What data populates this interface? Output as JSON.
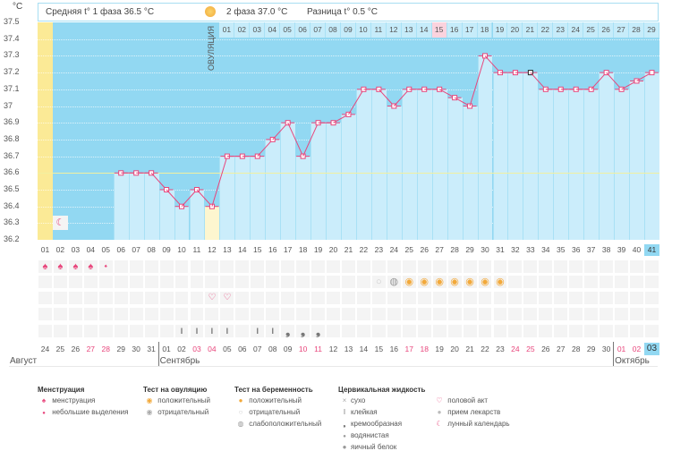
{
  "header": {
    "unit": "°C",
    "phase1": "Средняя t° 1 фаза 36.5 °C",
    "phase2": "2 фаза 37.0 °C",
    "diff": "Разница t° 0.5 °C"
  },
  "ovulation_label": "ОВУЛЯЦИЯ",
  "colors": {
    "plot_bg": "#92d8f2",
    "bar": "#cbedfb",
    "line": "#e8467c",
    "ovulation": "#fbea96",
    "highlight": "#fdb0c4",
    "coverline": "#f2f0a0"
  },
  "chart_data": {
    "type": "line",
    "ylabel": "°C",
    "ylim": [
      36.2,
      37.5
    ],
    "yticks": [
      "37.5",
      "37.4",
      "37.3",
      "37.2",
      "37.1",
      "37",
      "36.9",
      "36.8",
      "36.7",
      "36.6",
      "36.5",
      "36.4",
      "36.3",
      "36.2"
    ],
    "coverline": 36.6,
    "ovulation_day": 12,
    "highlight_phase2_day": 15,
    "cycle_days": [
      "01",
      "02",
      "03",
      "04",
      "05",
      "06",
      "07",
      "08",
      "09",
      "10",
      "11",
      "12",
      "13",
      "14",
      "15",
      "16",
      "17",
      "18",
      "19",
      "20",
      "21",
      "22",
      "23",
      "24",
      "25",
      "26",
      "27",
      "28",
      "29",
      "30",
      "31",
      "32",
      "33",
      "34",
      "35",
      "36",
      "37",
      "38",
      "39",
      "40",
      "41"
    ],
    "temps": [
      null,
      null,
      null,
      null,
      null,
      36.6,
      36.6,
      36.6,
      36.5,
      36.4,
      36.5,
      36.4,
      36.7,
      36.7,
      36.7,
      36.8,
      36.9,
      36.7,
      36.9,
      36.9,
      36.95,
      37.1,
      37.1,
      37.0,
      37.1,
      37.1,
      37.1,
      37.05,
      37.0,
      37.3,
      37.2,
      37.2,
      37.2,
      37.1,
      37.1,
      37.1,
      37.1,
      37.2,
      37.1,
      37.15,
      37.2
    ],
    "phase2_labels": [
      "01",
      "02",
      "03",
      "04",
      "05",
      "06",
      "07",
      "08",
      "09",
      "10",
      "11",
      "12",
      "13",
      "14",
      "15",
      "16",
      "17",
      "18",
      "19",
      "20",
      "21",
      "22",
      "23",
      "24",
      "25",
      "26",
      "27",
      "28",
      "29"
    ],
    "dates": [
      "24",
      "25",
      "26",
      "27",
      "28",
      "29",
      "30",
      "31",
      "01",
      "02",
      "03",
      "04",
      "05",
      "06",
      "07",
      "08",
      "09",
      "10",
      "11",
      "12",
      "13",
      "14",
      "15",
      "16",
      "17",
      "18",
      "19",
      "20",
      "21",
      "22",
      "23",
      "24",
      "25",
      "26",
      "27",
      "28",
      "29",
      "30",
      "01",
      "02",
      "03"
    ],
    "weekend": [
      4,
      5,
      11,
      12,
      18,
      19,
      25,
      26,
      32,
      33,
      39,
      40
    ],
    "today_index": 41,
    "months": [
      {
        "label": "Август",
        "start": 1
      },
      {
        "label": "Сентябрь",
        "start": 9
      },
      {
        "label": "Октябрь",
        "start": 39
      }
    ],
    "moon_day": 2,
    "menstruation": {
      "1": "heavy",
      "2": "heavy",
      "3": "heavy",
      "4": "heavy",
      "5": "light"
    },
    "pregnancy_tests": {
      "23": "negative",
      "24": "weak",
      "25": "positive",
      "26": "positive",
      "27": "positive",
      "28": "positive",
      "29": "positive",
      "30": "positive",
      "31": "positive"
    },
    "intercourse": [
      12,
      13
    ],
    "cervical": {
      "10": "sticky",
      "11": "sticky",
      "12": "sticky",
      "13": "sticky",
      "15": "sticky",
      "16": "sticky",
      "17": "creamy",
      "18": "creamy",
      "19": "creamy"
    }
  },
  "legend": {
    "menstruation": {
      "title": "Менструация",
      "items": [
        "менструация",
        "небольшие выделения"
      ]
    },
    "ovulation_test": {
      "title": "Тест на овуляцию",
      "items": [
        "положительный",
        "отрицательный"
      ]
    },
    "pregnancy_test": {
      "title": "Тест на беременность",
      "items": [
        "положительный",
        "отрицательный",
        "слабоположительный"
      ]
    },
    "cervical": {
      "title": "Цервикальная жидкость",
      "items": [
        "сухо",
        "клейкая",
        "кремообразная",
        "водянистая",
        "яичный белок"
      ]
    },
    "other": {
      "items": [
        "половой акт",
        "прием лекарств",
        "лунный календарь"
      ]
    }
  }
}
